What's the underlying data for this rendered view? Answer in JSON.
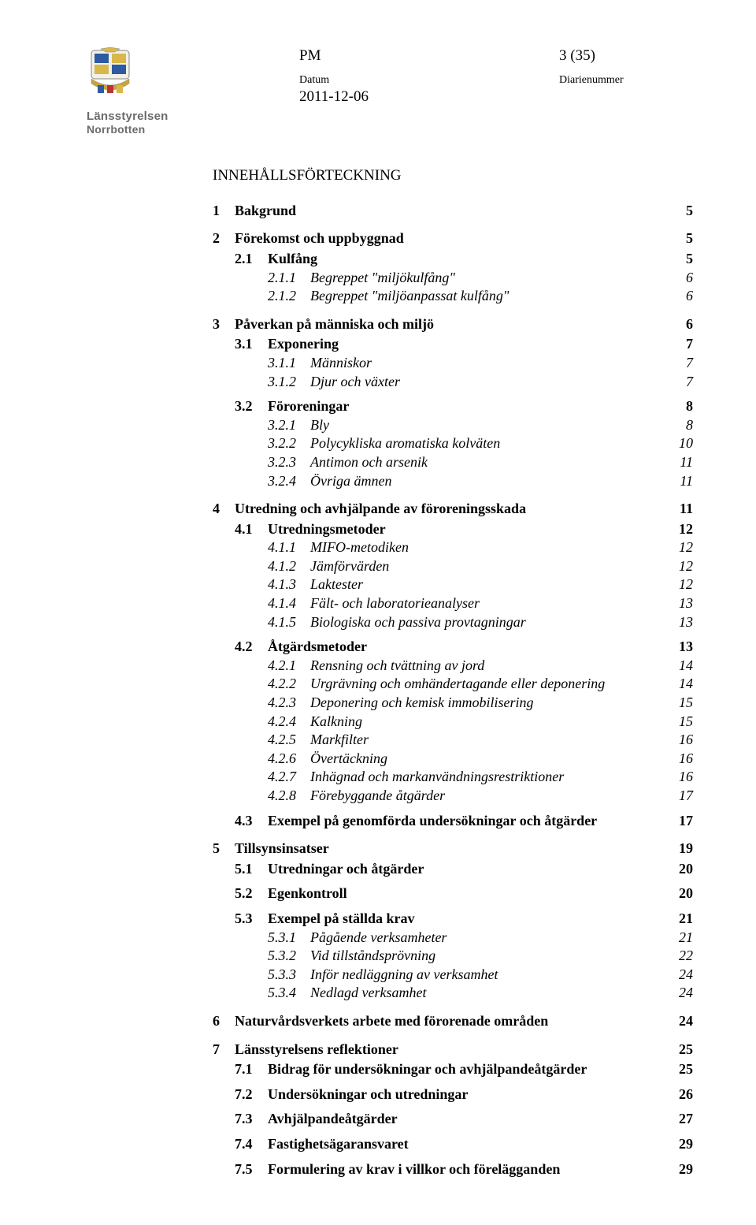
{
  "header": {
    "doc_type": "PM",
    "page_info": "3 (35)",
    "datum_label": "Datum",
    "diarienummer_label": "Diarienummer",
    "date": "2011-12-06",
    "org_line1": "Länsstyrelsen",
    "org_line2": "Norrbotten"
  },
  "toc_title": "INNEHÅLLSFÖRTECKNING",
  "toc": [
    {
      "level": 1,
      "num": "1",
      "label": "Bakgrund",
      "page": "5"
    },
    {
      "level": 1,
      "num": "2",
      "label": "Förekomst och uppbyggnad",
      "page": "5"
    },
    {
      "level": 2,
      "num": "2.1",
      "label": "Kulfång",
      "page": "5"
    },
    {
      "level": 3,
      "num": "2.1.1",
      "label": "Begreppet \"miljökulfång\"",
      "page": "6"
    },
    {
      "level": 3,
      "num": "2.1.2",
      "label": "Begreppet \"miljöanpassat kulfång\"",
      "page": "6"
    },
    {
      "level": 1,
      "num": "3",
      "label": "Påverkan på människa och miljö",
      "page": "6"
    },
    {
      "level": 2,
      "num": "3.1",
      "label": "Exponering",
      "page": "7"
    },
    {
      "level": 3,
      "num": "3.1.1",
      "label": "Människor",
      "page": "7"
    },
    {
      "level": 3,
      "num": "3.1.2",
      "label": "Djur och växter",
      "page": "7"
    },
    {
      "level": 2,
      "num": "3.2",
      "label": "Föroreningar",
      "page": "8",
      "gap": true
    },
    {
      "level": 3,
      "num": "3.2.1",
      "label": "Bly",
      "page": "8"
    },
    {
      "level": 3,
      "num": "3.2.2",
      "label": "Polycykliska aromatiska kolväten",
      "page": "10"
    },
    {
      "level": 3,
      "num": "3.2.3",
      "label": "Antimon och arsenik",
      "page": "11"
    },
    {
      "level": 3,
      "num": "3.2.4",
      "label": "Övriga ämnen",
      "page": "11"
    },
    {
      "level": 1,
      "num": "4",
      "label": "Utredning och avhjälpande av föroreningsskada",
      "page": "11"
    },
    {
      "level": 2,
      "num": "4.1",
      "label": "Utredningsmetoder",
      "page": "12"
    },
    {
      "level": 3,
      "num": "4.1.1",
      "label": "MIFO-metodiken",
      "page": "12"
    },
    {
      "level": 3,
      "num": "4.1.2",
      "label": "Jämförvärden",
      "page": "12"
    },
    {
      "level": 3,
      "num": "4.1.3",
      "label": "Laktester",
      "page": "12"
    },
    {
      "level": 3,
      "num": "4.1.4",
      "label": "Fält- och laboratorieanalyser",
      "page": "13"
    },
    {
      "level": 3,
      "num": "4.1.5",
      "label": "Biologiska och passiva provtagningar",
      "page": "13"
    },
    {
      "level": 2,
      "num": "4.2",
      "label": "Åtgärdsmetoder",
      "page": "13",
      "gap": true
    },
    {
      "level": 3,
      "num": "4.2.1",
      "label": "Rensning och tvättning av jord",
      "page": "14"
    },
    {
      "level": 3,
      "num": "4.2.2",
      "label": "Urgrävning och omhändertagande eller deponering",
      "page": "14"
    },
    {
      "level": 3,
      "num": "4.2.3",
      "label": "Deponering och kemisk immobilisering",
      "page": "15"
    },
    {
      "level": 3,
      "num": "4.2.4",
      "label": "Kalkning",
      "page": "15"
    },
    {
      "level": 3,
      "num": "4.2.5",
      "label": "Markfilter",
      "page": "16"
    },
    {
      "level": 3,
      "num": "4.2.6",
      "label": "Övertäckning",
      "page": "16"
    },
    {
      "level": 3,
      "num": "4.2.7",
      "label": "Inhägnad och markanvändningsrestriktioner",
      "page": "16"
    },
    {
      "level": 3,
      "num": "4.2.8",
      "label": "Förebyggande åtgärder",
      "page": "17"
    },
    {
      "level": 2,
      "num": "4.3",
      "label": "Exempel på genomförda undersökningar och åtgärder",
      "page": "17",
      "gap": true
    },
    {
      "level": 1,
      "num": "5",
      "label": "Tillsynsinsatser",
      "page": "19"
    },
    {
      "level": 2,
      "num": "5.1",
      "label": "Utredningar och åtgärder",
      "page": "20"
    },
    {
      "level": 2,
      "num": "5.2",
      "label": "Egenkontroll",
      "page": "20",
      "gap": true
    },
    {
      "level": 2,
      "num": "5.3",
      "label": "Exempel på ställda krav",
      "page": "21",
      "gap": true
    },
    {
      "level": 3,
      "num": "5.3.1",
      "label": "Pågående verksamheter",
      "page": "21"
    },
    {
      "level": 3,
      "num": "5.3.2",
      "label": "Vid tillståndsprövning",
      "page": "22"
    },
    {
      "level": 3,
      "num": "5.3.3",
      "label": "Inför nedläggning av verksamhet",
      "page": "24"
    },
    {
      "level": 3,
      "num": "5.3.4",
      "label": "Nedlagd verksamhet",
      "page": "24"
    },
    {
      "level": 1,
      "num": "6",
      "label": "Naturvårdsverkets arbete med förorenade områden",
      "page": "24"
    },
    {
      "level": 1,
      "num": "7",
      "label": "Länsstyrelsens reflektioner",
      "page": "25"
    },
    {
      "level": 2,
      "num": "7.1",
      "label": "Bidrag för undersökningar och avhjälpandeåtgärder",
      "page": "25"
    },
    {
      "level": 2,
      "num": "7.2",
      "label": "Undersökningar och utredningar",
      "page": "26",
      "gap": true
    },
    {
      "level": 2,
      "num": "7.3",
      "label": "Avhjälpandeåtgärder",
      "page": "27",
      "gap": true
    },
    {
      "level": 2,
      "num": "7.4",
      "label": "Fastighetsägaransvaret",
      "page": "29",
      "gap": true
    },
    {
      "level": 2,
      "num": "7.5",
      "label": "Formulering av krav i villkor och förelägganden",
      "page": "29",
      "gap": true
    }
  ]
}
